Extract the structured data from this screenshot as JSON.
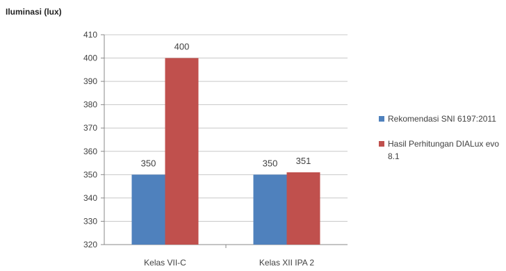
{
  "chart_data": {
    "type": "bar",
    "ylabel": "Iluminasi (lux)",
    "xlabel": "",
    "categories": [
      "Kelas VII-C",
      "Kelas XII IPA 2"
    ],
    "series": [
      {
        "name": "Rekomendasi SNI 6197:2011",
        "values": [
          350,
          350
        ],
        "color": "#4f81bd"
      },
      {
        "name": "Hasil Perhitungan DIALux evo 8.1",
        "values": [
          400,
          351
        ],
        "color": "#c0504d"
      }
    ],
    "ylim": [
      320,
      410
    ],
    "yticks": [
      320,
      330,
      340,
      350,
      360,
      370,
      380,
      390,
      400,
      410
    ],
    "grid": true,
    "legend_position": "right",
    "data_labels": true
  }
}
